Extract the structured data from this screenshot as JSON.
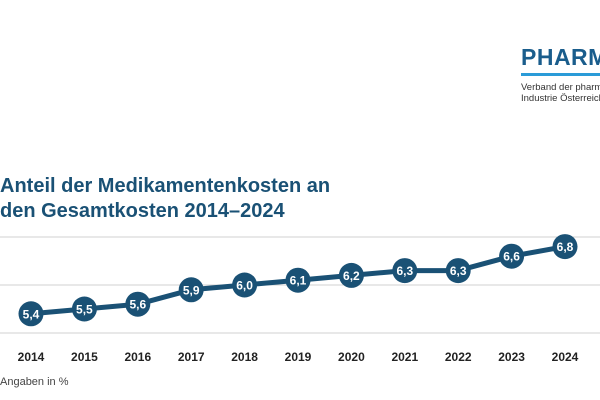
{
  "logo": {
    "wordmark": "PHARM",
    "subline_1": "Verband der pharmaze",
    "subline_2": "Industrie Österreichs",
    "color": "#1a5d8c"
  },
  "title_line_1": "Anteil der Medikamentenkosten an",
  "title_line_2": "den Gesamtkosten 2014–2024",
  "footnote": "Angaben in %",
  "chart_data": {
    "type": "line",
    "title": "Anteil der Medikamentenkosten an den Gesamtkosten 2014–2024",
    "xlabel": "",
    "ylabel": "",
    "categories": [
      "2014",
      "2015",
      "2016",
      "2017",
      "2018",
      "2019",
      "2020",
      "2021",
      "2022",
      "2023",
      "2024"
    ],
    "series": [
      {
        "values": [
          5.4,
          5.5,
          5.6,
          5.9,
          6.0,
          6.1,
          6.2,
          6.3,
          6.3,
          6.6,
          6.8
        ],
        "labels": [
          "5,4",
          "5,5",
          "5,6",
          "5,9",
          "6,0",
          "6,1",
          "6,2",
          "6,3",
          "6,3",
          "6,6",
          "6,8"
        ]
      }
    ],
    "ylim": [
      5.0,
      7.0
    ],
    "grid": true,
    "line_color": "#1a5175",
    "grid_color": "#d0d0d0",
    "label_color": "#ffffff"
  }
}
